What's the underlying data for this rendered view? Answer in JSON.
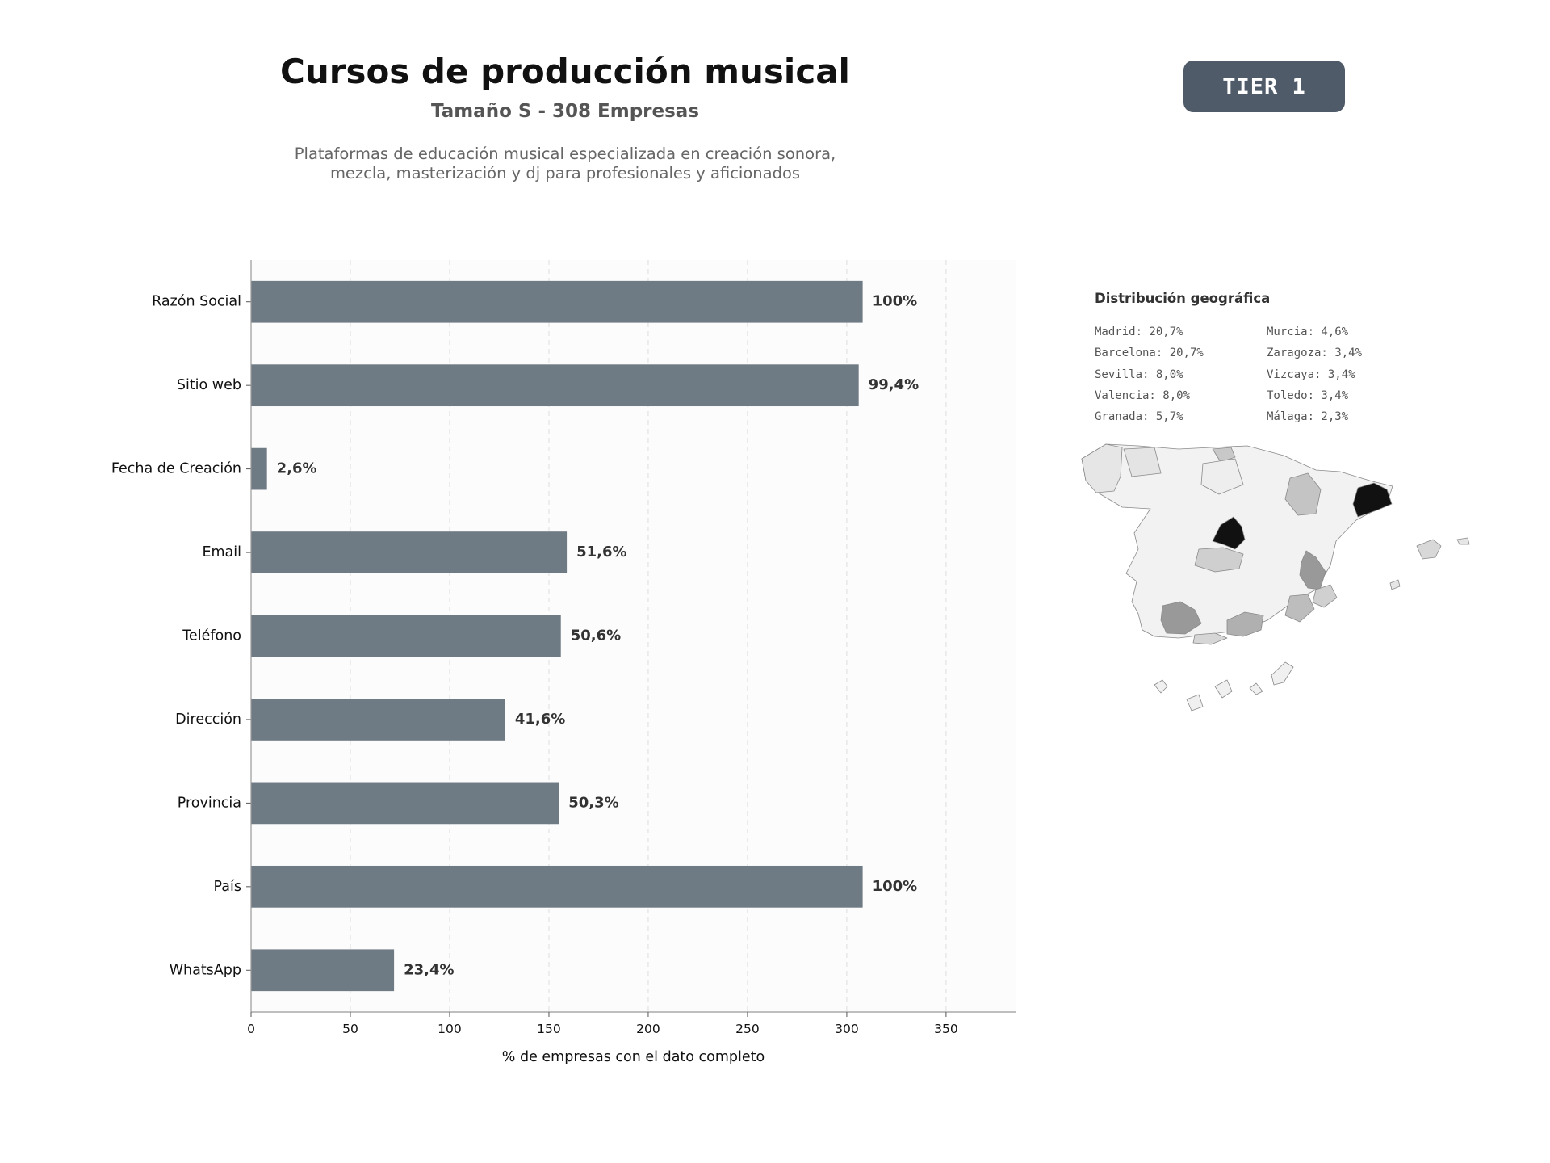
{
  "header": {
    "title": "Cursos de producción musical",
    "subtitle": "Tamaño S - 308 Empresas",
    "description_line1": "Plataformas de educación musical especializada en creación sonora,",
    "description_line2": "mezcla, masterización y dj para profesionales y aficionados"
  },
  "badge": {
    "label": "TIER 1"
  },
  "chart_data": {
    "type": "bar",
    "orientation": "horizontal",
    "categories": [
      "Razón Social",
      "Sitio web",
      "Fecha de Creación",
      "Email",
      "Teléfono",
      "Dirección",
      "Provincia",
      "País",
      "WhatsApp"
    ],
    "values": [
      308,
      306,
      8,
      159,
      156,
      128,
      155,
      308,
      72
    ],
    "value_labels": [
      "100%",
      "99,4%",
      "2,6%",
      "51,6%",
      "50,6%",
      "41,6%",
      "50,3%",
      "100%",
      "23,4%"
    ],
    "xlabel": "% de empresas con el dato completo",
    "xlim": [
      0,
      385
    ],
    "xticks": [
      0,
      50,
      100,
      150,
      200,
      250,
      300,
      350
    ],
    "grid": "vertical dashed",
    "bar_color": "#6e7a84"
  },
  "geo": {
    "title": "Distribución geográfica",
    "left_column": [
      "Madrid: 20,7%",
      "Barcelona: 20,7%",
      "Sevilla: 8,0%",
      "Valencia: 8,0%",
      "Granada: 5,7%"
    ],
    "right_column": [
      "Murcia: 4,6%",
      "Zaragoza: 3,4%",
      "Vizcaya: 3,4%",
      "Toledo: 3,4%",
      "Málaga: 2,3%"
    ]
  }
}
